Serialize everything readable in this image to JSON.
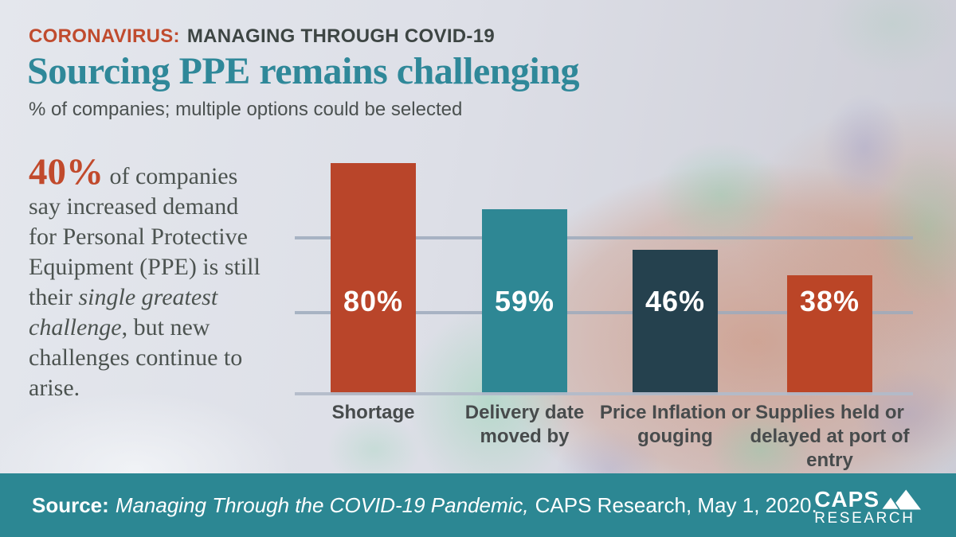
{
  "header": {
    "eyebrow_highlight": "CORONAVIRUS:",
    "eyebrow_rest": "MANAGING THROUGH COVID-19",
    "title": "Sourcing PPE remains challenging",
    "subtitle": "% of companies; multiple options could be selected"
  },
  "callout": {
    "stat": "40%",
    "text_mid": " of companies say increased demand for Personal Protective Equipment (PPE) is still their ",
    "text_italic": "single greatest challenge",
    "text_end": ", but new challenges continue to arise."
  },
  "chart_data": {
    "type": "bar",
    "categories": [
      "Shortage",
      "Delivery date moved by",
      "Price Inflation or gouging",
      "Supplies held or delayed at port of entry"
    ],
    "values": [
      80,
      59,
      46,
      38
    ],
    "value_labels": [
      "80%",
      "59%",
      "46%",
      "38%"
    ],
    "bar_colors": [
      "#b9452a",
      "#2e8794",
      "#25414e",
      "#bb4527"
    ],
    "title": "Sourcing PPE remains challenging",
    "subtitle": "% of companies; multiple options could be selected",
    "xlabel": "",
    "ylabel": "",
    "ylim": [
      0,
      100
    ],
    "value_suffix": "%",
    "grid": "horizontal, 2 unlabeled gridlines plus baseline",
    "legend": "none",
    "value_label_position": "inside bars, white, aligned at same height"
  },
  "footer": {
    "source_label": "Source:",
    "source_italic": "Managing Through the COVID-19 Pandemic,",
    "source_rest": "CAPS Research, May 1, 2020.",
    "logo_line1": "CAPS",
    "logo_line2": "RESEARCH"
  },
  "colors": {
    "accent_red": "#bb4a2e",
    "teal_title": "#2f8899",
    "bar_red": "#b9452a",
    "bar_teal": "#2e8794",
    "bar_navy": "#25414e",
    "footer_teal": "#2c8793",
    "text_dark": "#3d4543",
    "body_text": "#4c5350",
    "gridline": "#9eaabc"
  }
}
